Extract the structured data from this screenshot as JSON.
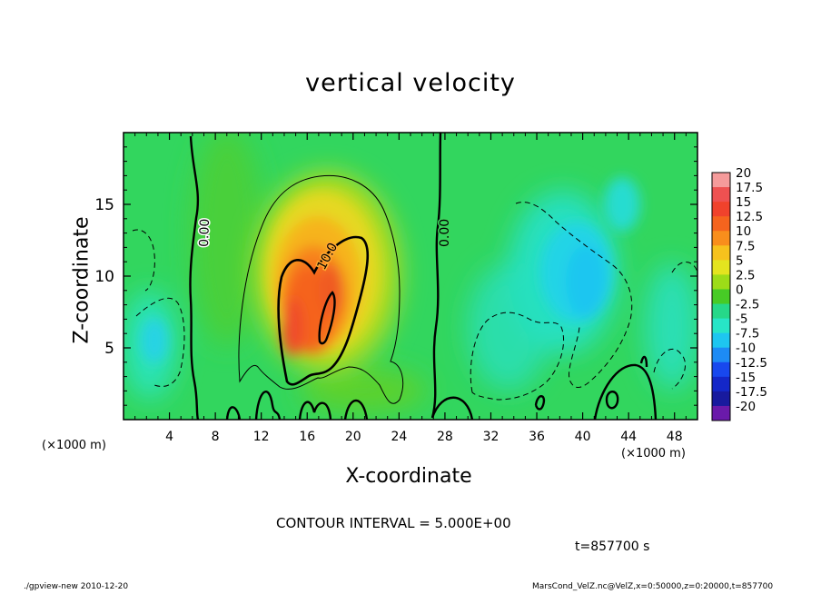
{
  "title": "vertical velocity",
  "footer": {
    "left": "./gpview-new  2010-12-20",
    "right": "MarsCond_VelZ.nc@VelZ,x=0:50000,z=0:20000,t=857700"
  },
  "contour_interval_text": "CONTOUR INTERVAL = 5.000E+00",
  "time_text": "t=857700  s",
  "chart_data": {
    "type": "heatmap",
    "title": "vertical velocity",
    "xlabel": "X-coordinate",
    "ylabel": "Z-coordinate",
    "x_unit_left": "(×1000 m)",
    "x_unit_right": "(×1000 m)",
    "xlim": [
      0,
      50
    ],
    "ylim": [
      0,
      20
    ],
    "xticks": [
      4,
      8,
      12,
      16,
      20,
      24,
      28,
      32,
      36,
      40,
      44,
      48
    ],
    "yticks": [
      5,
      10,
      15
    ],
    "colorbar": {
      "labels": [
        "20",
        "17.5",
        "15",
        "12.5",
        "10",
        "7.5",
        "5",
        "2.5",
        "0",
        "-2.5",
        "-5",
        "-7.5",
        "-10",
        "-12.5",
        "-15",
        "-17.5",
        "-20"
      ],
      "colors": [
        "#f59b9b",
        "#ee5151",
        "#f0422c",
        "#f5641e",
        "#f88e1c",
        "#f6c21d",
        "#e4e41f",
        "#9ddc18",
        "#47cb26",
        "#26d889",
        "#27e5c7",
        "#1ec6f0",
        "#1d8bf5",
        "#1848ee",
        "#1427c8",
        "#181a9e",
        "#6a1aaa"
      ]
    },
    "contour_labels": [
      "0.00",
      "10.0",
      "0.00"
    ],
    "contour_interval": 5.0,
    "time": 857700,
    "features": [
      {
        "kind": "updraft",
        "center_x": 17,
        "center_z": 7.5,
        "max": 15
      },
      {
        "kind": "downdraft",
        "center_x": 41,
        "center_z": 10,
        "min": -7.5
      }
    ]
  }
}
